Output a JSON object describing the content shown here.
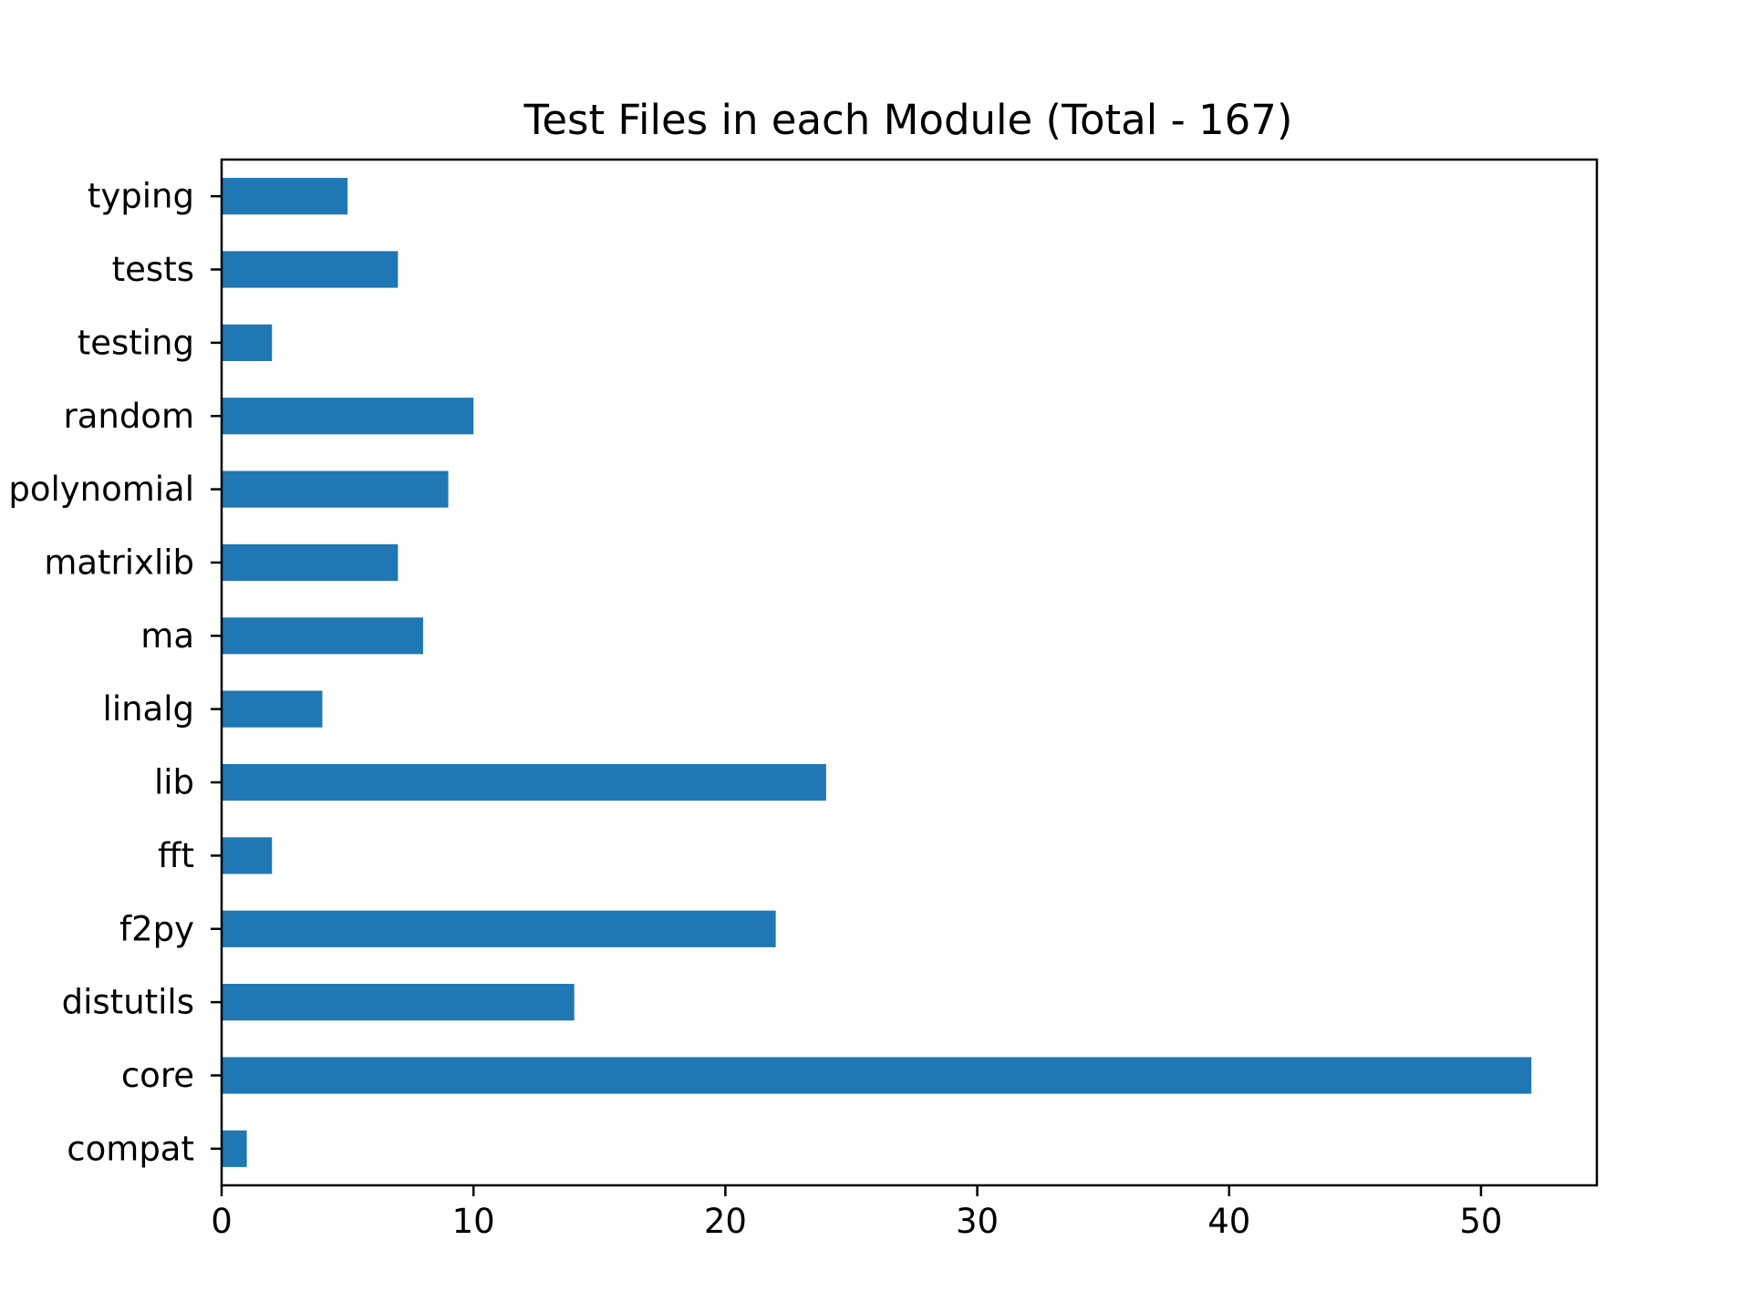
{
  "chart_data": {
    "type": "bar",
    "orientation": "horizontal",
    "title": "Test Files in each Module (Total - 167)",
    "xlabel": "",
    "ylabel": "",
    "categories": [
      "compat",
      "core",
      "distutils",
      "f2py",
      "fft",
      "lib",
      "linalg",
      "ma",
      "matrixlib",
      "polynomial",
      "random",
      "testing",
      "tests",
      "typing"
    ],
    "values": [
      1,
      52,
      14,
      22,
      2,
      24,
      4,
      8,
      7,
      9,
      10,
      2,
      7,
      5
    ],
    "xlim": [
      0,
      54.6
    ],
    "xticks": [
      0,
      10,
      20,
      30,
      40,
      50
    ],
    "grid": false,
    "legend": "none",
    "bar_color": "#1f77b4"
  }
}
